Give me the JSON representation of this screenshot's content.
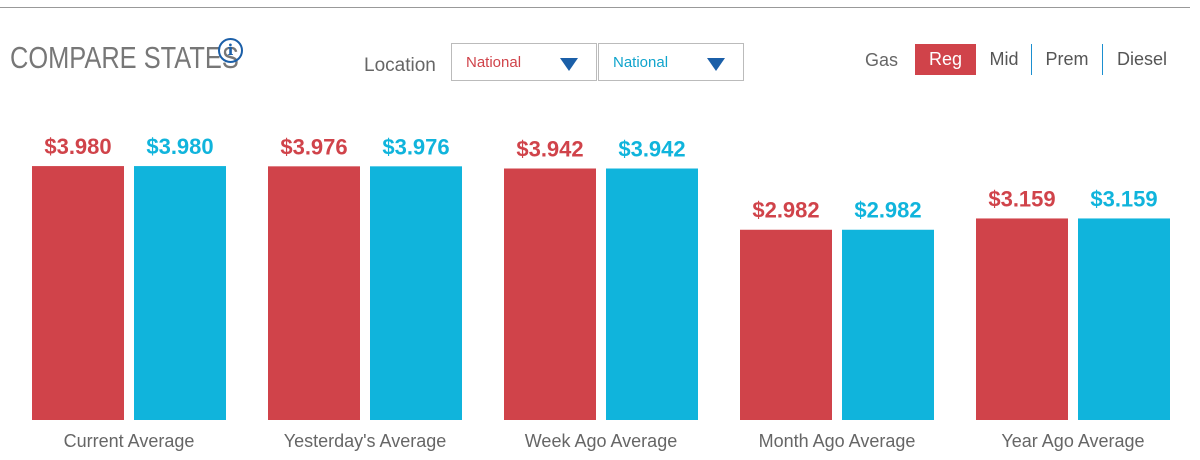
{
  "header": {
    "title": "COMPARE STATES",
    "info_icon": "i"
  },
  "controls": {
    "location_label": "Location",
    "selects": [
      "National",
      "National"
    ],
    "gas_label": "Gas",
    "grades": [
      "Reg",
      "Mid",
      "Prem",
      "Diesel"
    ]
  },
  "chart_data": {
    "type": "bar",
    "categories": [
      "Current Average",
      "Yesterday's Average",
      "Week Ago Average",
      "Month Ago Average",
      "Year Ago Average"
    ],
    "series": [
      {
        "color": "#d0434a",
        "values": [
          3.98,
          3.976,
          3.942,
          2.982,
          3.159
        ],
        "value_labels": [
          "$3.980",
          "$3.976",
          "$3.942",
          "$2.982",
          "$3.159"
        ]
      },
      {
        "color": "#10b4dc",
        "values": [
          3.98,
          3.976,
          3.942,
          2.982,
          3.159
        ],
        "value_labels": [
          "$3.980",
          "$3.976",
          "$3.942",
          "$2.982",
          "$3.159"
        ]
      }
    ]
  }
}
